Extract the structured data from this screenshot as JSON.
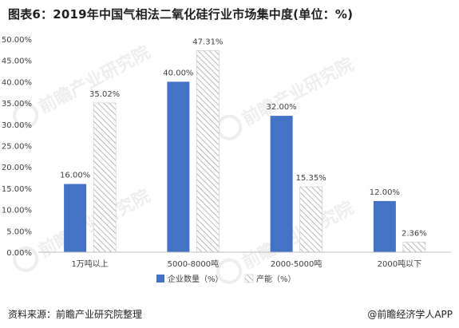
{
  "title": "图表6：2019年中国气相法二氧化硅行业市场集中度(单位：%)",
  "footer": {
    "source": "资料来源：前瞻产业研究院整理",
    "credit": "@前瞻经济学人APP"
  },
  "watermark": "前瞻产业研究院",
  "colors": {
    "series1": "#4472c4",
    "series2_stroke": "#a6a6a6",
    "axis": "#bfbfbf",
    "text": "#404040"
  },
  "chart_data": {
    "type": "bar",
    "categories": [
      "1万吨以上",
      "5000-8000吨",
      "2000-5000吨",
      "2000吨以下"
    ],
    "series": [
      {
        "name": "企业数量（%）",
        "values": [
          16.0,
          40.0,
          32.0,
          12.0
        ],
        "labels": [
          "16.00%",
          "40.00%",
          "32.00%",
          "12.00%"
        ],
        "fill": "solid"
      },
      {
        "name": "产能（%）",
        "values": [
          35.02,
          47.31,
          15.35,
          2.36
        ],
        "labels": [
          "35.02%",
          "47.31%",
          "15.35%",
          "2.36%"
        ],
        "fill": "hatched"
      }
    ],
    "ylim": [
      0,
      50
    ],
    "yticks": [
      "0.00%",
      "5.00%",
      "10.00%",
      "15.00%",
      "20.00%",
      "25.00%",
      "30.00%",
      "35.00%",
      "40.00%",
      "45.00%",
      "50.00%"
    ],
    "ytick_values": [
      0,
      5,
      10,
      15,
      20,
      25,
      30,
      35,
      40,
      45,
      50
    ],
    "legend_position": "bottom",
    "grid": false
  }
}
